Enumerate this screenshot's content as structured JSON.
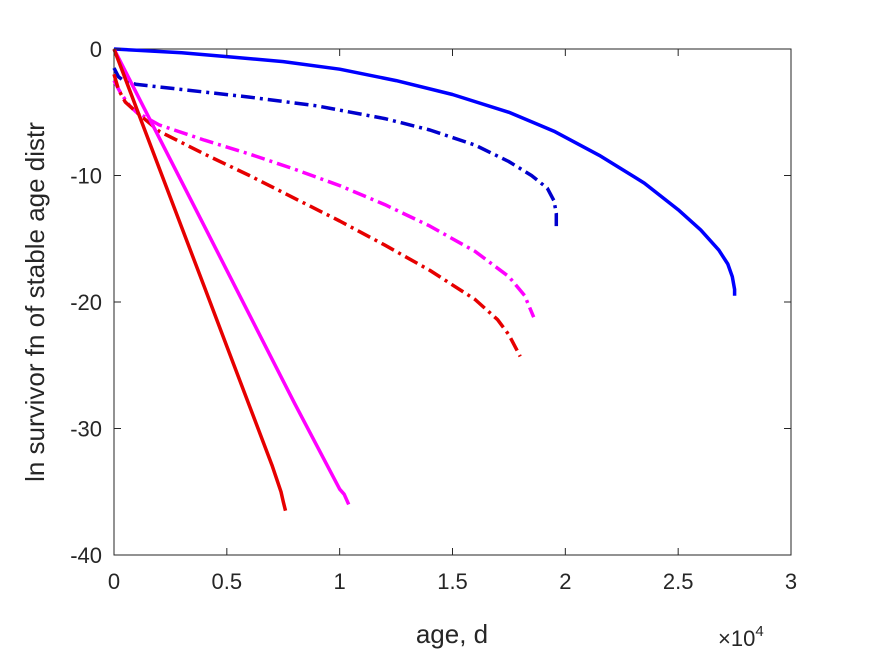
{
  "chart_data": {
    "type": "line",
    "xlabel": "age, d",
    "ylabel": "ln survivor fn of stable age distr",
    "x_exponent_label": {
      "base": "×10",
      "exponent": "4"
    },
    "x_tick_labels": [
      "0",
      "0.5",
      "1",
      "1.5",
      "2",
      "2.5",
      "3"
    ],
    "y_tick_labels": [
      "0",
      "-10",
      "-20",
      "-30",
      "-40"
    ],
    "xlim": [
      0,
      30000
    ],
    "ylim": [
      -40,
      0
    ],
    "grid": false,
    "legend": "none",
    "series": [
      {
        "color": "#0000ff",
        "style": "solid",
        "x": [
          0,
          1000,
          3000,
          5000,
          7500,
          10000,
          12500,
          15000,
          17500,
          19500,
          21500,
          23500,
          25000,
          26000,
          26800,
          27200,
          27400,
          27500,
          27500
        ],
        "y": [
          0,
          -0.1,
          -0.3,
          -0.6,
          -1.0,
          -1.6,
          -2.5,
          -3.6,
          -5.0,
          -6.5,
          -8.4,
          -10.6,
          -12.7,
          -14.3,
          -15.9,
          -17.0,
          -18.0,
          -19.0,
          -19.5
        ]
      },
      {
        "color": "#0000cd",
        "style": "dashdot",
        "x": [
          0,
          200,
          500,
          1000,
          3000,
          6000,
          9000,
          12000,
          14000,
          16000,
          17500,
          18500,
          19200,
          19500,
          19600,
          19600
        ],
        "y": [
          -1.5,
          -2.2,
          -2.6,
          -2.8,
          -3.2,
          -3.8,
          -4.5,
          -5.5,
          -6.4,
          -7.6,
          -8.9,
          -10.0,
          -11.0,
          -12.0,
          -13.0,
          -14.0
        ]
      },
      {
        "color": "#ff00ff",
        "style": "dashdot",
        "x": [
          0,
          300,
          700,
          1000,
          2000,
          4000,
          6000,
          8000,
          10000,
          12000,
          14000,
          16000,
          17500,
          18200,
          18600
        ],
        "y": [
          -2.5,
          -3.5,
          -4.5,
          -5.0,
          -6.0,
          -7.2,
          -8.3,
          -9.5,
          -10.8,
          -12.3,
          -14.0,
          -16.0,
          -18.0,
          -19.5,
          -21.2
        ]
      },
      {
        "color": "#e60000",
        "style": "dashdot",
        "x": [
          0,
          200,
          500,
          1000,
          2000,
          4000,
          6000,
          8000,
          10000,
          12000,
          14000,
          16000,
          17000,
          17500,
          18000
        ],
        "y": [
          -2.0,
          -3.2,
          -4.2,
          -5.0,
          -6.5,
          -8.3,
          -10.0,
          -11.8,
          -13.6,
          -15.5,
          -17.5,
          -19.8,
          -21.4,
          -22.6,
          -24.3
        ]
      },
      {
        "color": "#ff00ff",
        "style": "solid",
        "x": [
          0,
          2000,
          4000,
          6000,
          8000,
          10000,
          10200,
          10400
        ],
        "y": [
          0,
          -7.0,
          -14.0,
          -21.0,
          -28.0,
          -34.8,
          -35.2,
          -36.0
        ]
      },
      {
        "color": "#e60000",
        "style": "solid",
        "x": [
          0,
          1000,
          2000,
          3000,
          4000,
          5000,
          6000,
          7000,
          7400,
          7500,
          7600
        ],
        "y": [
          0,
          -4.7,
          -9.4,
          -14.1,
          -18.8,
          -23.5,
          -28.2,
          -32.9,
          -35.0,
          -35.8,
          -36.5
        ]
      }
    ]
  }
}
